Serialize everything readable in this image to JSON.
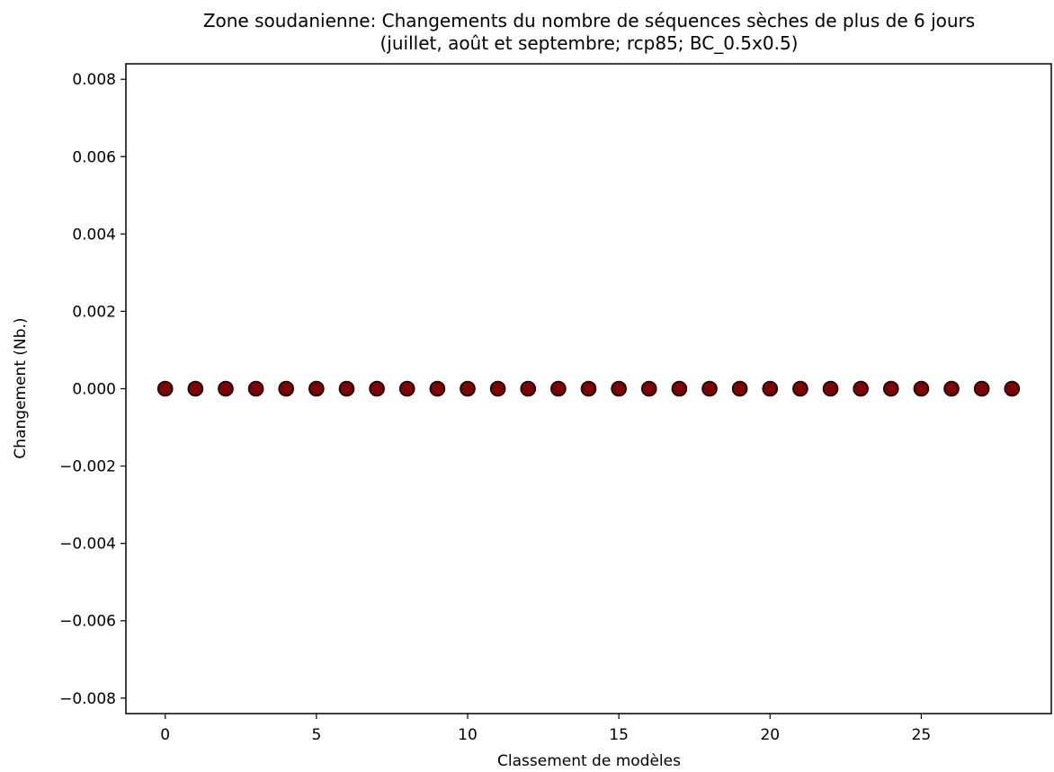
{
  "chart_data": {
    "type": "scatter",
    "title_line1": "Zone soudanienne: Changements du nombre de séquences sèches de plus de 6 jours",
    "title_line2": "(juillet, août et septembre; rcp85; BC_0.5x0.5)",
    "xlabel": "Classement de modèles",
    "ylabel": "Changement (Nb.)",
    "xlim": [
      -1.3,
      29.3
    ],
    "ylim": [
      -0.0084,
      0.0084
    ],
    "x_ticks": [
      0,
      5,
      10,
      15,
      20,
      25
    ],
    "x_tick_labels": [
      "0",
      "5",
      "10",
      "15",
      "20",
      "25"
    ],
    "y_ticks": [
      0.008,
      0.006,
      0.004,
      0.002,
      0.0,
      -0.002,
      -0.004,
      -0.006,
      -0.008
    ],
    "y_tick_labels": [
      "0.008",
      "0.006",
      "0.004",
      "0.002",
      "0.000",
      "−0.002",
      "−0.004",
      "−0.006",
      "−0.008"
    ],
    "grid": false,
    "legend": "none",
    "marker_color": "#800000",
    "marker_edge_color": "#000000",
    "series": [
      {
        "x": [
          0,
          1,
          2,
          3,
          4,
          5,
          6,
          7,
          8,
          9,
          10,
          11,
          12,
          13,
          14,
          15,
          16,
          17,
          18,
          19,
          20,
          21,
          22,
          23,
          24,
          25,
          26,
          27,
          28
        ],
        "y": [
          0,
          0,
          0,
          0,
          0,
          0,
          0,
          0,
          0,
          0,
          0,
          0,
          0,
          0,
          0,
          0,
          0,
          0,
          0,
          0,
          0,
          0,
          0,
          0,
          0,
          0,
          0,
          0,
          0
        ]
      }
    ]
  }
}
